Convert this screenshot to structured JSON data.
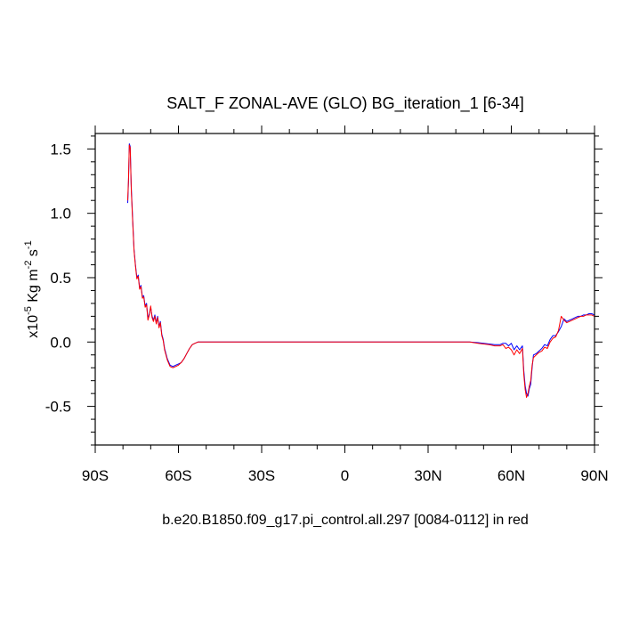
{
  "chart_data": {
    "type": "line",
    "title": "SALT_F ZONAL-AVE (GLO) BG_iteration_1 [6-34]",
    "ylabel": {
      "prefix": "x10",
      "exp1": "-5",
      "middle": " Kg m",
      "exp2": "-2",
      "middle2": " s",
      "exp3": "-1"
    },
    "xlabel": "b.e20.B1850.f09_g17.pi_control.all.297 [0084-0112] in red",
    "xlim": [
      -90,
      90
    ],
    "ylim": [
      -0.8,
      1.62
    ],
    "x_ticks": [
      {
        "value": -90,
        "label": "90S"
      },
      {
        "value": -60,
        "label": "60S"
      },
      {
        "value": -30,
        "label": "30S"
      },
      {
        "value": 0,
        "label": "0"
      },
      {
        "value": 30,
        "label": "30N"
      },
      {
        "value": 60,
        "label": "60N"
      },
      {
        "value": 90,
        "label": "90N"
      }
    ],
    "y_ticks": [
      {
        "value": -0.5,
        "label": "-0.5"
      },
      {
        "value": 0.0,
        "label": "0.0"
      },
      {
        "value": 0.5,
        "label": "0.5"
      },
      {
        "value": 1.0,
        "label": "1.0"
      },
      {
        "value": 1.5,
        "label": "1.5"
      }
    ],
    "grid": false,
    "series": [
      {
        "color": "#0000ff",
        "x": [
          -78.3,
          -78.0,
          -77.7,
          -77.4,
          -77.0,
          -76.5,
          -76.0,
          -75.5,
          -75.0,
          -74.5,
          -74.0,
          -73.5,
          -73.0,
          -72.5,
          -72.0,
          -71.5,
          -71.0,
          -70.5,
          -70.0,
          -69.5,
          -69.0,
          -68.5,
          -68.0,
          -67.5,
          -67.0,
          -66.5,
          -66.0,
          -65.5,
          -65.0,
          -64.0,
          -63.0,
          -62.0,
          -61.0,
          -60.0,
          -59.0,
          -58.0,
          -57.0,
          -56.0,
          -55.0,
          -54.0,
          -53.0,
          -52.0,
          -51.0,
          -50.0,
          -45.0,
          -30.0,
          0.0,
          20.0,
          40.0,
          45.0,
          48.0,
          50.0,
          52.0,
          54.0,
          56.0,
          57.0,
          58.0,
          59.0,
          60.0,
          61.0,
          62.0,
          63.0,
          64.0,
          64.5,
          65.0,
          65.5,
          66.0,
          66.5,
          67.0,
          67.5,
          68.0,
          69.0,
          70.0,
          71.0,
          72.0,
          73.0,
          74.0,
          75.0,
          76.0,
          77.0,
          78.0,
          79.0,
          80.0,
          81.0,
          82.0,
          83.0,
          84.0,
          85.0,
          86.0,
          87.0,
          88.0,
          89.0,
          90.0
        ],
        "y": [
          1.08,
          1.25,
          1.54,
          1.52,
          1.2,
          0.95,
          0.72,
          0.6,
          0.5,
          0.52,
          0.42,
          0.44,
          0.35,
          0.36,
          0.28,
          0.3,
          0.18,
          0.22,
          0.27,
          0.2,
          0.17,
          0.21,
          0.15,
          0.2,
          0.12,
          0.16,
          0.06,
          0.02,
          -0.05,
          -0.13,
          -0.18,
          -0.19,
          -0.18,
          -0.17,
          -0.16,
          -0.13,
          -0.09,
          -0.05,
          -0.02,
          -0.01,
          0.0,
          0.0,
          0.0,
          0.0,
          0.0,
          0.0,
          0.0,
          0.0,
          0.0,
          0.0,
          -0.005,
          -0.01,
          -0.015,
          -0.02,
          -0.02,
          -0.01,
          -0.01,
          -0.03,
          -0.01,
          -0.06,
          -0.03,
          -0.06,
          -0.03,
          -0.22,
          -0.34,
          -0.4,
          -0.42,
          -0.36,
          -0.33,
          -0.2,
          -0.1,
          -0.09,
          -0.07,
          -0.05,
          -0.02,
          -0.03,
          0.02,
          0.05,
          0.05,
          0.08,
          0.12,
          0.18,
          0.16,
          0.17,
          0.18,
          0.19,
          0.2,
          0.2,
          0.21,
          0.21,
          0.22,
          0.22,
          0.21
        ]
      },
      {
        "color": "#ff0000",
        "x": [
          -78.3,
          -78.0,
          -77.7,
          -77.4,
          -77.0,
          -76.5,
          -76.0,
          -75.5,
          -75.0,
          -74.5,
          -74.0,
          -73.5,
          -73.0,
          -72.5,
          -72.0,
          -71.5,
          -71.0,
          -70.5,
          -70.0,
          -69.5,
          -69.0,
          -68.5,
          -68.0,
          -67.5,
          -67.0,
          -66.5,
          -66.0,
          -65.5,
          -65.0,
          -64.0,
          -63.0,
          -62.0,
          -61.0,
          -60.0,
          -59.0,
          -58.0,
          -57.0,
          -56.0,
          -55.0,
          -54.0,
          -53.0,
          -52.0,
          -51.0,
          -50.0,
          -45.0,
          -30.0,
          0.0,
          20.0,
          40.0,
          45.0,
          48.0,
          50.0,
          52.0,
          54.0,
          56.0,
          57.0,
          58.0,
          59.0,
          60.0,
          61.0,
          62.0,
          63.0,
          64.0,
          64.5,
          65.0,
          65.5,
          66.0,
          66.5,
          67.0,
          67.5,
          68.0,
          69.0,
          70.0,
          71.0,
          72.0,
          73.0,
          74.0,
          75.0,
          76.0,
          77.0,
          78.0,
          79.0,
          80.0,
          81.0,
          82.0,
          83.0,
          84.0,
          85.0,
          86.0,
          87.0,
          88.0,
          89.0,
          90.0
        ],
        "y": [
          1.1,
          1.27,
          1.53,
          1.51,
          1.18,
          0.93,
          0.71,
          0.59,
          0.49,
          0.51,
          0.41,
          0.43,
          0.34,
          0.35,
          0.27,
          0.29,
          0.17,
          0.21,
          0.28,
          0.19,
          0.16,
          0.2,
          0.14,
          0.19,
          0.11,
          0.15,
          0.05,
          0.01,
          -0.06,
          -0.14,
          -0.19,
          -0.2,
          -0.19,
          -0.18,
          -0.16,
          -0.13,
          -0.09,
          -0.05,
          -0.02,
          -0.01,
          0.0,
          0.0,
          0.0,
          0.0,
          0.0,
          0.0,
          0.0,
          0.0,
          0.0,
          0.0,
          -0.01,
          -0.015,
          -0.02,
          -0.03,
          -0.03,
          -0.02,
          -0.05,
          -0.04,
          -0.06,
          -0.1,
          -0.06,
          -0.09,
          -0.05,
          -0.25,
          -0.37,
          -0.43,
          -0.4,
          -0.34,
          -0.3,
          -0.18,
          -0.12,
          -0.1,
          -0.08,
          -0.07,
          -0.04,
          -0.05,
          0.0,
          0.03,
          0.04,
          0.09,
          0.2,
          0.17,
          0.15,
          0.16,
          0.17,
          0.18,
          0.19,
          0.2,
          0.2,
          0.21,
          0.21,
          0.21,
          0.2
        ]
      }
    ]
  }
}
